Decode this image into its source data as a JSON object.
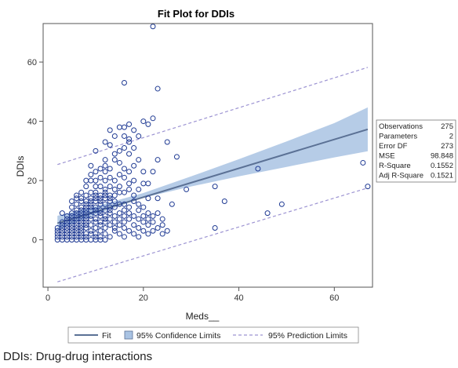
{
  "caption": "DDIs: Drug-drug interactions",
  "colors": {
    "fit": "#5B7195",
    "confidence_band": "#A9C3E3",
    "prediction": "#9C93D2",
    "marker": "#1F3A93",
    "frame": "#555555"
  },
  "chart_data": {
    "type": "scatter",
    "title": "Fit Plot for DDIs",
    "xlabel": "Meds__",
    "ylabel": "DDIs",
    "xlim": [
      -1,
      68
    ],
    "ylim": [
      -16,
      73
    ],
    "xticks": [
      0,
      20,
      40,
      60
    ],
    "yticks": [
      0,
      20,
      40,
      60
    ],
    "grid": false,
    "fit_line": {
      "x": [
        2,
        67
      ],
      "y": [
        5.6,
        37.3
      ]
    },
    "confidence_limits": {
      "x": [
        2,
        10,
        20,
        30,
        40,
        50,
        60,
        67
      ],
      "lower": [
        3.2,
        8.6,
        14.2,
        18.0,
        21.4,
        24.6,
        27.8,
        29.9
      ],
      "upper": [
        8.1,
        11.3,
        15.8,
        21.4,
        27.2,
        33.2,
        39.4,
        44.7
      ]
    },
    "prediction_limits": {
      "x": [
        2,
        67
      ],
      "lower": [
        -14.2,
        17.5
      ],
      "upper": [
        25.4,
        58.2
      ]
    },
    "points": [
      [
        22,
        72
      ],
      [
        16,
        53
      ],
      [
        23,
        51
      ],
      [
        20,
        40
      ],
      [
        21,
        39
      ],
      [
        17,
        39
      ],
      [
        22,
        41
      ],
      [
        15,
        38
      ],
      [
        13,
        37
      ],
      [
        18,
        37
      ],
      [
        14,
        35
      ],
      [
        16,
        35
      ],
      [
        19,
        35
      ],
      [
        12,
        33
      ],
      [
        17,
        33
      ],
      [
        25,
        33
      ],
      [
        13,
        32
      ],
      [
        16,
        31
      ],
      [
        18,
        31
      ],
      [
        10,
        30
      ],
      [
        15,
        30
      ],
      [
        14,
        29
      ],
      [
        17,
        29
      ],
      [
        12,
        27
      ],
      [
        23,
        27
      ],
      [
        27,
        28
      ],
      [
        15,
        26
      ],
      [
        19,
        27
      ],
      [
        11,
        24
      ],
      [
        16,
        24
      ],
      [
        10,
        23
      ],
      [
        12,
        23
      ],
      [
        17,
        23
      ],
      [
        18,
        25
      ],
      [
        20,
        23
      ],
      [
        22,
        23
      ],
      [
        13,
        21
      ],
      [
        11,
        21
      ],
      [
        9,
        20
      ],
      [
        10,
        20
      ],
      [
        12,
        20
      ],
      [
        14,
        20
      ],
      [
        16,
        21
      ],
      [
        18,
        20
      ],
      [
        20,
        19
      ],
      [
        21,
        19
      ],
      [
        44,
        24
      ],
      [
        66,
        26
      ],
      [
        15,
        18
      ],
      [
        8,
        18
      ],
      [
        10,
        18
      ],
      [
        11,
        18
      ],
      [
        12,
        17
      ],
      [
        13,
        18
      ],
      [
        14,
        17
      ],
      [
        17,
        17
      ],
      [
        19,
        17
      ],
      [
        29,
        17
      ],
      [
        35,
        18
      ],
      [
        9,
        16
      ],
      [
        10,
        16
      ],
      [
        12,
        16
      ],
      [
        15,
        16
      ],
      [
        16,
        16
      ],
      [
        18,
        15
      ],
      [
        8,
        15
      ],
      [
        10,
        15
      ],
      [
        11,
        15
      ],
      [
        12,
        15
      ],
      [
        13,
        15
      ],
      [
        14,
        15
      ],
      [
        6,
        14
      ],
      [
        7,
        14
      ],
      [
        9,
        14
      ],
      [
        10,
        14
      ],
      [
        11,
        14
      ],
      [
        12,
        14
      ],
      [
        13,
        14
      ],
      [
        21,
        14
      ],
      [
        23,
        14
      ],
      [
        37,
        13
      ],
      [
        7,
        13
      ],
      [
        8,
        13
      ],
      [
        9,
        13
      ],
      [
        10,
        13
      ],
      [
        11,
        13
      ],
      [
        13,
        13
      ],
      [
        14,
        13
      ],
      [
        15,
        12
      ],
      [
        16,
        12
      ],
      [
        6,
        12
      ],
      [
        8,
        12
      ],
      [
        9,
        12
      ],
      [
        11,
        12
      ],
      [
        12,
        12
      ],
      [
        17,
        11
      ],
      [
        20,
        11
      ],
      [
        49,
        12
      ],
      [
        5,
        11
      ],
      [
        7,
        11
      ],
      [
        8,
        11
      ],
      [
        9,
        11
      ],
      [
        10,
        11
      ],
      [
        13,
        11
      ],
      [
        14,
        11
      ],
      [
        6,
        10
      ],
      [
        7,
        10
      ],
      [
        8,
        10
      ],
      [
        9,
        10
      ],
      [
        10,
        10
      ],
      [
        11,
        10
      ],
      [
        12,
        10
      ],
      [
        13,
        10
      ],
      [
        16,
        10
      ],
      [
        19,
        10
      ],
      [
        5,
        9
      ],
      [
        6,
        9
      ],
      [
        7,
        9
      ],
      [
        8,
        9
      ],
      [
        10,
        9
      ],
      [
        11,
        9
      ],
      [
        13,
        9
      ],
      [
        15,
        9
      ],
      [
        17,
        9
      ],
      [
        21,
        9
      ],
      [
        23,
        9
      ],
      [
        46,
        9
      ],
      [
        4,
        8
      ],
      [
        5,
        8
      ],
      [
        6,
        8
      ],
      [
        7,
        8
      ],
      [
        8,
        8
      ],
      [
        9,
        8
      ],
      [
        11,
        8
      ],
      [
        12,
        8
      ],
      [
        14,
        8
      ],
      [
        16,
        8
      ],
      [
        18,
        8
      ],
      [
        22,
        8
      ],
      [
        4,
        7
      ],
      [
        5,
        7
      ],
      [
        6,
        7
      ],
      [
        7,
        7
      ],
      [
        8,
        7
      ],
      [
        9,
        7
      ],
      [
        10,
        7
      ],
      [
        12,
        7
      ],
      [
        13,
        7
      ],
      [
        15,
        7
      ],
      [
        17,
        7
      ],
      [
        19,
        7
      ],
      [
        24,
        7
      ],
      [
        3,
        6
      ],
      [
        4,
        6
      ],
      [
        5,
        6
      ],
      [
        6,
        6
      ],
      [
        7,
        6
      ],
      [
        8,
        6
      ],
      [
        10,
        6
      ],
      [
        12,
        6
      ],
      [
        14,
        6
      ],
      [
        16,
        6
      ],
      [
        20,
        6
      ],
      [
        3,
        5
      ],
      [
        4,
        5
      ],
      [
        5,
        5
      ],
      [
        6,
        5
      ],
      [
        7,
        5
      ],
      [
        8,
        5
      ],
      [
        9,
        5
      ],
      [
        11,
        5
      ],
      [
        13,
        5
      ],
      [
        15,
        5
      ],
      [
        18,
        5
      ],
      [
        21,
        5
      ],
      [
        3,
        4
      ],
      [
        4,
        4
      ],
      [
        5,
        4
      ],
      [
        6,
        4
      ],
      [
        7,
        4
      ],
      [
        8,
        4
      ],
      [
        10,
        4
      ],
      [
        12,
        4
      ],
      [
        16,
        4
      ],
      [
        19,
        4
      ],
      [
        23,
        4
      ],
      [
        35,
        4
      ],
      [
        2,
        3
      ],
      [
        3,
        3
      ],
      [
        4,
        3
      ],
      [
        5,
        3
      ],
      [
        6,
        3
      ],
      [
        7,
        3
      ],
      [
        9,
        3
      ],
      [
        11,
        3
      ],
      [
        14,
        3
      ],
      [
        17,
        3
      ],
      [
        20,
        3
      ],
      [
        22,
        3
      ],
      [
        2,
        2
      ],
      [
        3,
        2
      ],
      [
        4,
        2
      ],
      [
        5,
        2
      ],
      [
        6,
        2
      ],
      [
        7,
        2
      ],
      [
        8,
        2
      ],
      [
        9,
        2
      ],
      [
        10,
        2
      ],
      [
        12,
        2
      ],
      [
        15,
        2
      ],
      [
        18,
        2
      ],
      [
        21,
        2
      ],
      [
        24,
        2
      ],
      [
        2,
        1
      ],
      [
        3,
        1
      ],
      [
        4,
        1
      ],
      [
        5,
        1
      ],
      [
        6,
        1
      ],
      [
        7,
        1
      ],
      [
        8,
        1
      ],
      [
        10,
        1
      ],
      [
        11,
        1
      ],
      [
        13,
        1
      ],
      [
        16,
        1
      ],
      [
        19,
        1
      ],
      [
        2,
        0
      ],
      [
        3,
        0
      ],
      [
        4,
        0
      ],
      [
        5,
        0
      ],
      [
        6,
        0
      ],
      [
        7,
        0
      ],
      [
        8,
        0
      ],
      [
        9,
        0
      ],
      [
        10,
        0
      ],
      [
        11,
        0
      ],
      [
        12,
        0
      ],
      [
        67,
        18
      ],
      [
        3,
        9
      ],
      [
        5,
        13
      ],
      [
        7,
        16
      ],
      [
        8,
        20
      ],
      [
        9,
        22
      ],
      [
        12,
        25
      ],
      [
        14,
        27
      ],
      [
        15,
        22
      ],
      [
        17,
        19
      ],
      [
        18,
        13
      ],
      [
        19,
        12
      ],
      [
        20,
        8
      ],
      [
        21,
        7
      ],
      [
        22,
        6
      ],
      [
        24,
        5
      ],
      [
        25,
        3
      ],
      [
        13,
        24
      ],
      [
        26,
        12
      ],
      [
        11,
        6
      ],
      [
        14,
        4
      ],
      [
        6,
        15
      ],
      [
        9,
        25
      ],
      [
        2,
        4
      ],
      [
        16,
        38
      ],
      [
        17,
        34
      ]
    ],
    "stats": {
      "labels": [
        "Observations",
        "Parameters",
        "Error DF",
        "MSE",
        "R-Square",
        "Adj R-Square"
      ],
      "values": [
        "275",
        "2",
        "273",
        "98.848",
        "0.1552",
        "0.1521"
      ]
    },
    "legend": {
      "position": "bottom",
      "items": [
        "Fit",
        "95% Confidence Limits",
        "95% Prediction Limits"
      ]
    }
  }
}
